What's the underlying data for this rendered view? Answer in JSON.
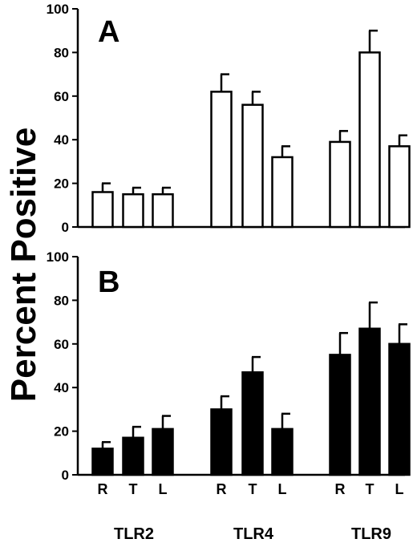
{
  "chart_data": {
    "ylabel": "Percent Positive",
    "groups": [
      "TLR2",
      "TLR4",
      "TLR9"
    ],
    "categories": [
      "R",
      "T",
      "L"
    ],
    "yticks": [
      0,
      20,
      40,
      60,
      80,
      100
    ],
    "ylim": [
      0,
      100
    ],
    "grid": false,
    "panels": [
      {
        "label": "A",
        "type": "bar",
        "fill": "#ffffff",
        "values": [
          [
            16,
            15,
            15
          ],
          [
            62,
            56,
            32
          ],
          [
            39,
            80,
            37
          ]
        ],
        "errors": [
          [
            4,
            3,
            3
          ],
          [
            8,
            6,
            5
          ],
          [
            5,
            10,
            5
          ]
        ]
      },
      {
        "label": "B",
        "type": "bar",
        "fill": "#000000",
        "values": [
          [
            12,
            17,
            21
          ],
          [
            30,
            47,
            21
          ],
          [
            55,
            67,
            60
          ]
        ],
        "errors": [
          [
            3,
            5,
            6
          ],
          [
            6,
            7,
            7
          ],
          [
            10,
            12,
            9
          ]
        ]
      }
    ]
  }
}
